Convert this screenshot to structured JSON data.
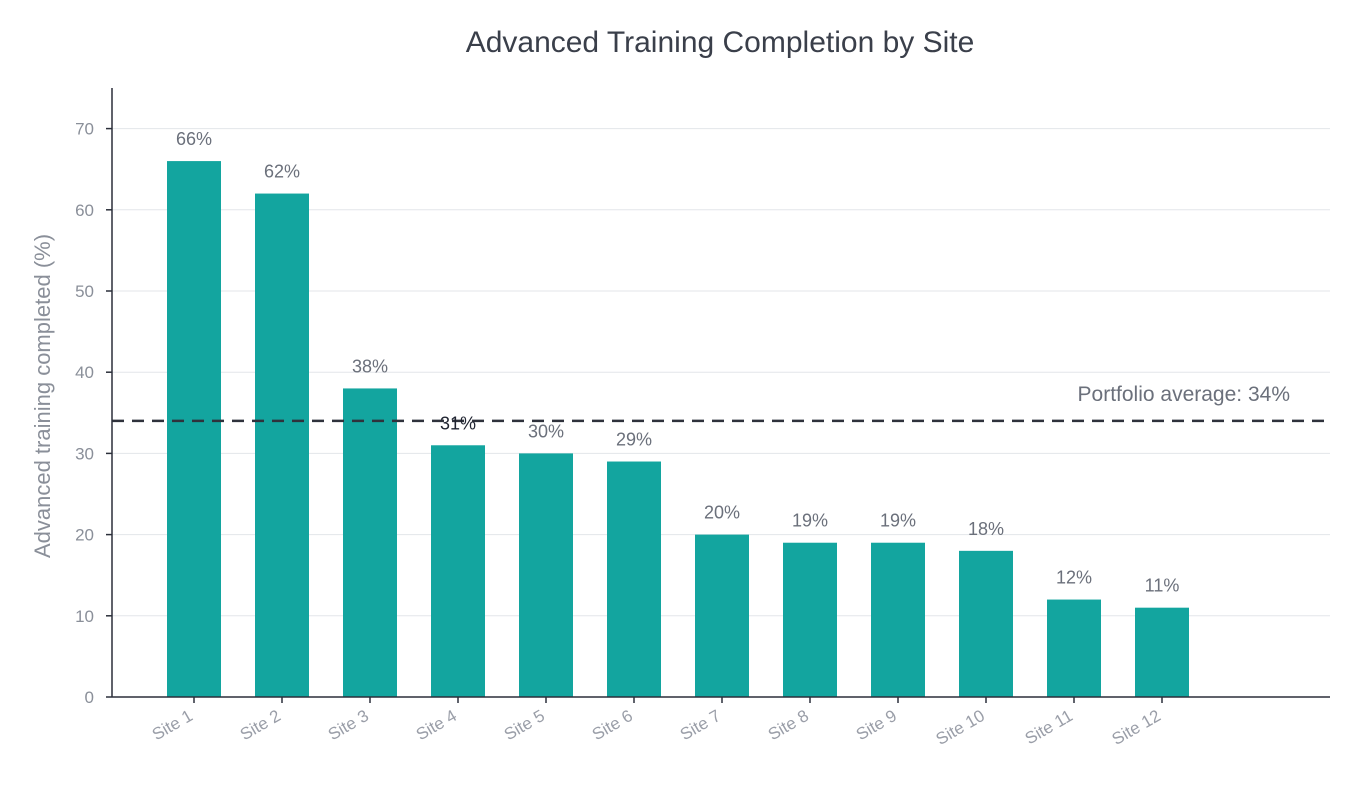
{
  "chart_data": {
    "type": "bar",
    "title": "Advanced Training Completion by Site",
    "xlabel": "",
    "ylabel": "Advanced training completed (%)",
    "ylim": [
      0,
      75
    ],
    "yticks": [
      0,
      10,
      20,
      30,
      40,
      50,
      60,
      70
    ],
    "grid": true,
    "categories": [
      "Site 1",
      "Site 2",
      "Site 3",
      "Site 4",
      "Site 5",
      "Site 6",
      "Site 7",
      "Site 8",
      "Site 9",
      "Site 10",
      "Site 11",
      "Site 12"
    ],
    "values": [
      66,
      62,
      38,
      31,
      30,
      29,
      20,
      19,
      19,
      18,
      12,
      11
    ],
    "data_labels": [
      "66%",
      "62%",
      "38%",
      "31%",
      "30%",
      "29%",
      "20%",
      "19%",
      "19%",
      "18%",
      "12%",
      "11%"
    ],
    "reference_line": {
      "value": 34,
      "label": "Portfolio average: 34%",
      "style": "dashed"
    },
    "colors": {
      "bar": "#13a59f",
      "reference_line": "#2f323c"
    }
  }
}
